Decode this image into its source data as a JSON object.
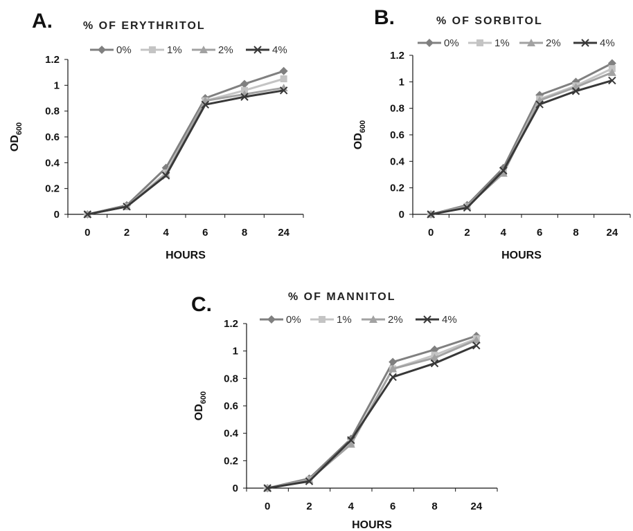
{
  "chart_data": [
    {
      "type": "line",
      "panel": "A.",
      "title": "% OF ERYTHRITOL",
      "xlabel": "HOURS",
      "ylabel": "OD",
      "ylabel_sub": "600",
      "categories": [
        "0",
        "2",
        "4",
        "6",
        "8",
        "24"
      ],
      "ylim": [
        0,
        1.2
      ],
      "yticks": [
        "0",
        "0.2",
        "0.4",
        "0.6",
        "0.8",
        "1",
        "1.2"
      ],
      "grid": false,
      "legend": "top",
      "series": [
        {
          "name": "0%",
          "values": [
            0,
            0.07,
            0.36,
            0.9,
            1.01,
            1.11
          ]
        },
        {
          "name": "1%",
          "values": [
            0,
            0.06,
            0.32,
            0.88,
            0.96,
            1.05
          ]
        },
        {
          "name": "2%",
          "values": [
            0,
            0.06,
            0.31,
            0.88,
            0.93,
            0.98
          ]
        },
        {
          "name": "4%",
          "values": [
            0,
            0.06,
            0.3,
            0.85,
            0.91,
            0.96
          ]
        }
      ]
    },
    {
      "type": "line",
      "panel": "B.",
      "title": "% OF SORBITOL",
      "xlabel": "HOURS",
      "ylabel": "OD",
      "ylabel_sub": "600",
      "categories": [
        "0",
        "2",
        "4",
        "6",
        "8",
        "24"
      ],
      "ylim": [
        0,
        1.2
      ],
      "yticks": [
        "0",
        "0.2",
        "0.4",
        "0.6",
        "0.8",
        "1",
        "1.2"
      ],
      "grid": false,
      "legend": "top",
      "series": [
        {
          "name": "0%",
          "values": [
            0,
            0.07,
            0.35,
            0.9,
            1.0,
            1.14
          ]
        },
        {
          "name": "1%",
          "values": [
            0,
            0.06,
            0.32,
            0.87,
            0.97,
            1.1
          ]
        },
        {
          "name": "2%",
          "values": [
            0,
            0.06,
            0.31,
            0.86,
            0.96,
            1.07
          ]
        },
        {
          "name": "4%",
          "values": [
            0,
            0.05,
            0.33,
            0.83,
            0.93,
            1.01
          ]
        }
      ]
    },
    {
      "type": "line",
      "panel": "C.",
      "title": "% OF MANNITOL",
      "xlabel": "HOURS",
      "ylabel": "OD",
      "ylabel_sub": "600",
      "categories": [
        "0",
        "2",
        "4",
        "6",
        "8",
        "24"
      ],
      "ylim": [
        0,
        1.2
      ],
      "yticks": [
        "0",
        "0.2",
        "0.4",
        "0.6",
        "0.8",
        "1",
        "1.2"
      ],
      "grid": false,
      "legend": "top",
      "series": [
        {
          "name": "0%",
          "values": [
            0,
            0.07,
            0.36,
            0.92,
            1.01,
            1.11
          ]
        },
        {
          "name": "1%",
          "values": [
            0,
            0.06,
            0.33,
            0.87,
            0.97,
            1.09
          ]
        },
        {
          "name": "2%",
          "values": [
            0,
            0.06,
            0.32,
            0.87,
            0.95,
            1.08
          ]
        },
        {
          "name": "4%",
          "values": [
            0,
            0.05,
            0.35,
            0.81,
            0.91,
            1.04
          ]
        }
      ]
    }
  ],
  "style": {
    "series_colors": [
      "#808080",
      "#c4c4c4",
      "#a2a2a2",
      "#383838"
    ],
    "series_markers": [
      "diamond",
      "square",
      "triangle",
      "x"
    ],
    "axis_color": "#111111"
  }
}
